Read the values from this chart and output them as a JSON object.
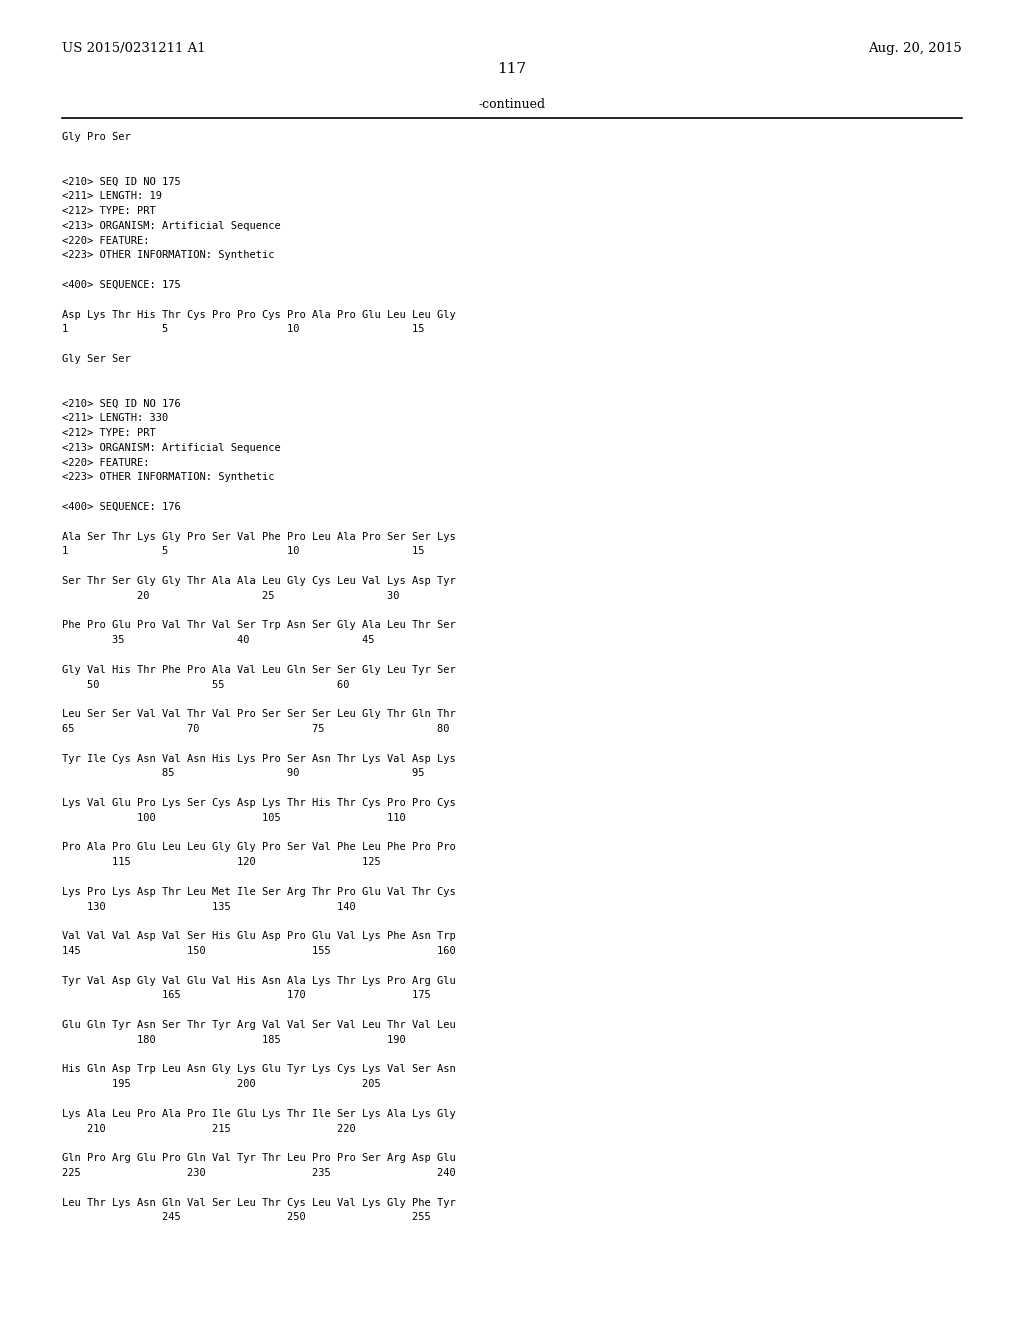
{
  "patent_number": "US 2015/0231211 A1",
  "date": "Aug. 20, 2015",
  "page_number": "117",
  "continued_text": "-continued",
  "background_color": "#ffffff",
  "text_color": "#000000",
  "content_lines": [
    "Gly Pro Ser",
    "",
    "",
    "<210> SEQ ID NO 175",
    "<211> LENGTH: 19",
    "<212> TYPE: PRT",
    "<213> ORGANISM: Artificial Sequence",
    "<220> FEATURE:",
    "<223> OTHER INFORMATION: Synthetic",
    "",
    "<400> SEQUENCE: 175",
    "",
    "Asp Lys Thr His Thr Cys Pro Pro Cys Pro Ala Pro Glu Leu Leu Gly",
    "1               5                   10                  15",
    "",
    "Gly Ser Ser",
    "",
    "",
    "<210> SEQ ID NO 176",
    "<211> LENGTH: 330",
    "<212> TYPE: PRT",
    "<213> ORGANISM: Artificial Sequence",
    "<220> FEATURE:",
    "<223> OTHER INFORMATION: Synthetic",
    "",
    "<400> SEQUENCE: 176",
    "",
    "Ala Ser Thr Lys Gly Pro Ser Val Phe Pro Leu Ala Pro Ser Ser Lys",
    "1               5                   10                  15",
    "",
    "Ser Thr Ser Gly Gly Thr Ala Ala Leu Gly Cys Leu Val Lys Asp Tyr",
    "            20                  25                  30",
    "",
    "Phe Pro Glu Pro Val Thr Val Ser Trp Asn Ser Gly Ala Leu Thr Ser",
    "        35                  40                  45",
    "",
    "Gly Val His Thr Phe Pro Ala Val Leu Gln Ser Ser Gly Leu Tyr Ser",
    "    50                  55                  60",
    "",
    "Leu Ser Ser Val Val Thr Val Pro Ser Ser Ser Leu Gly Thr Gln Thr",
    "65                  70                  75                  80",
    "",
    "Tyr Ile Cys Asn Val Asn His Lys Pro Ser Asn Thr Lys Val Asp Lys",
    "                85                  90                  95",
    "",
    "Lys Val Glu Pro Lys Ser Cys Asp Lys Thr His Thr Cys Pro Pro Cys",
    "            100                 105                 110",
    "",
    "Pro Ala Pro Glu Leu Leu Gly Gly Pro Ser Val Phe Leu Phe Pro Pro",
    "        115                 120                 125",
    "",
    "Lys Pro Lys Asp Thr Leu Met Ile Ser Arg Thr Pro Glu Val Thr Cys",
    "    130                 135                 140",
    "",
    "Val Val Val Asp Val Ser His Glu Asp Pro Glu Val Lys Phe Asn Trp",
    "145                 150                 155                 160",
    "",
    "Tyr Val Asp Gly Val Glu Val His Asn Ala Lys Thr Lys Pro Arg Glu",
    "                165                 170                 175",
    "",
    "Glu Gln Tyr Asn Ser Thr Tyr Arg Val Val Ser Val Leu Thr Val Leu",
    "            180                 185                 190",
    "",
    "His Gln Asp Trp Leu Asn Gly Lys Glu Tyr Lys Cys Lys Val Ser Asn",
    "        195                 200                 205",
    "",
    "Lys Ala Leu Pro Ala Pro Ile Glu Lys Thr Ile Ser Lys Ala Lys Gly",
    "    210                 215                 220",
    "",
    "Gln Pro Arg Glu Pro Gln Val Tyr Thr Leu Pro Pro Ser Arg Asp Glu",
    "225                 230                 235                 240",
    "",
    "Leu Thr Lys Asn Gln Val Ser Leu Thr Cys Leu Val Lys Gly Phe Tyr",
    "                245                 250                 255"
  ]
}
